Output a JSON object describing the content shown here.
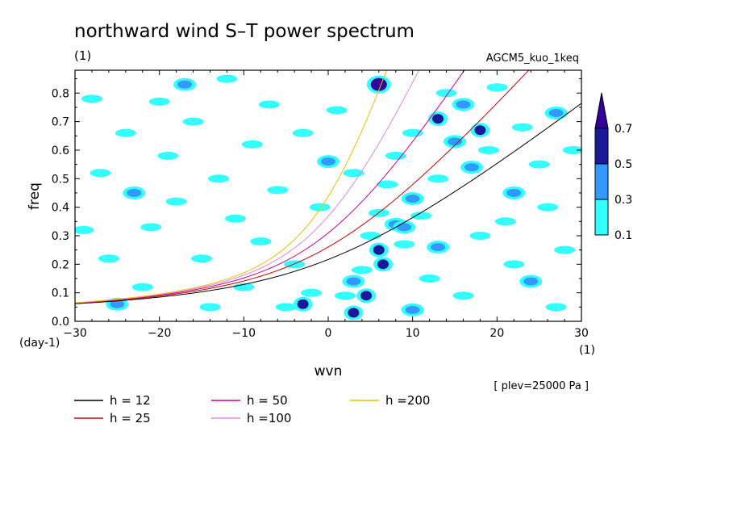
{
  "chart_data": {
    "type": "heatmap",
    "title": "northward wind S–T power spectrum",
    "subtitle_left": "(1)",
    "subtitle_right": "AGCM5_kuo_1keq",
    "xlabel": "wvn",
    "ylabel": "freq",
    "x_unit_label": "(1)",
    "y_unit_label": "(day-1)",
    "xlim": [
      -30,
      30
    ],
    "ylim": [
      0,
      0.88
    ],
    "x_ticks": [
      -30,
      -20,
      -10,
      0,
      10,
      20,
      30
    ],
    "y_ticks": [
      0.0,
      0.1,
      0.2,
      0.3,
      0.4,
      0.5,
      0.6,
      0.7,
      0.8
    ],
    "annotation": "[ plev=25000 Pa ]",
    "colorbar": {
      "levels": [
        0.1,
        0.3,
        0.5,
        0.7
      ],
      "level_labels": [
        "0.1",
        "0.3",
        "0.5",
        "0.7"
      ],
      "colors": [
        "#33ffff",
        "#3399ff",
        "#1a1a99",
        "#330099"
      ]
    },
    "series": [
      {
        "name": "h = 12",
        "equivalent_depth": 12,
        "color": "#000000"
      },
      {
        "name": "h = 25",
        "equivalent_depth": 25,
        "color": "#cc0000"
      },
      {
        "name": "h = 50",
        "equivalent_depth": 50,
        "color": "#cc0099"
      },
      {
        "name": "h =100",
        "equivalent_depth": 100,
        "color": "#dd88dd"
      },
      {
        "name": "h =200",
        "equivalent_depth": 200,
        "color": "#e6c200"
      }
    ],
    "contour_blobs": [
      {
        "wvn": 6,
        "freq": 0.83,
        "level": 0.7
      },
      {
        "wvn": 3,
        "freq": 0.03,
        "level": 0.5
      },
      {
        "wvn": 4.5,
        "freq": 0.09,
        "level": 0.5
      },
      {
        "wvn": 6,
        "freq": 0.25,
        "level": 0.5
      },
      {
        "wvn": 6.5,
        "freq": 0.2,
        "level": 0.5
      },
      {
        "wvn": -3,
        "freq": 0.06,
        "level": 0.5
      },
      {
        "wvn": 13,
        "freq": 0.71,
        "level": 0.5
      },
      {
        "wvn": 18,
        "freq": 0.67,
        "level": 0.5
      },
      {
        "wvn": 8,
        "freq": 0.34,
        "level": 0.3
      },
      {
        "wvn": 10,
        "freq": 0.43,
        "level": 0.3
      },
      {
        "wvn": 9,
        "freq": 0.33,
        "level": 0.3
      },
      {
        "wvn": 3,
        "freq": 0.14,
        "level": 0.3
      },
      {
        "wvn": 13,
        "freq": 0.26,
        "level": 0.3
      },
      {
        "wvn": 15,
        "freq": 0.63,
        "level": 0.3
      },
      {
        "wvn": 16,
        "freq": 0.76,
        "level": 0.3
      },
      {
        "wvn": 17,
        "freq": 0.54,
        "level": 0.3
      },
      {
        "wvn": 22,
        "freq": 0.45,
        "level": 0.3
      },
      {
        "wvn": 24,
        "freq": 0.14,
        "level": 0.3
      },
      {
        "wvn": 10,
        "freq": 0.04,
        "level": 0.3
      },
      {
        "wvn": -25,
        "freq": 0.06,
        "level": 0.3
      },
      {
        "wvn": -17,
        "freq": 0.83,
        "level": 0.3
      },
      {
        "wvn": 27,
        "freq": 0.73,
        "level": 0.3
      },
      {
        "wvn": 0,
        "freq": 0.56,
        "level": 0.3
      },
      {
        "wvn": -23,
        "freq": 0.45,
        "level": 0.3
      },
      {
        "wvn": -5,
        "freq": 0.05,
        "level": 0.1
      },
      {
        "wvn": -2,
        "freq": 0.1,
        "level": 0.1
      },
      {
        "wvn": 2,
        "freq": 0.09,
        "level": 0.1
      },
      {
        "wvn": 4,
        "freq": 0.18,
        "level": 0.1
      },
      {
        "wvn": 5,
        "freq": 0.3,
        "level": 0.1
      },
      {
        "wvn": 6,
        "freq": 0.38,
        "level": 0.1
      },
      {
        "wvn": 7,
        "freq": 0.48,
        "level": 0.1
      },
      {
        "wvn": 9,
        "freq": 0.27,
        "level": 0.1
      },
      {
        "wvn": 11,
        "freq": 0.37,
        "level": 0.1
      },
      {
        "wvn": 13,
        "freq": 0.5,
        "level": 0.1
      },
      {
        "wvn": 14,
        "freq": 0.8,
        "level": 0.1
      },
      {
        "wvn": 19,
        "freq": 0.6,
        "level": 0.1
      },
      {
        "wvn": 21,
        "freq": 0.35,
        "level": 0.1
      },
      {
        "wvn": 25,
        "freq": 0.55,
        "level": 0.1
      },
      {
        "wvn": 28,
        "freq": 0.25,
        "level": 0.1
      },
      {
        "wvn": -28,
        "freq": 0.78,
        "level": 0.1
      },
      {
        "wvn": -27,
        "freq": 0.52,
        "level": 0.1
      },
      {
        "wvn": -26,
        "freq": 0.22,
        "level": 0.1
      },
      {
        "wvn": -24,
        "freq": 0.66,
        "level": 0.1
      },
      {
        "wvn": -22,
        "freq": 0.12,
        "level": 0.1
      },
      {
        "wvn": -21,
        "freq": 0.33,
        "level": 0.1
      },
      {
        "wvn": -19,
        "freq": 0.58,
        "level": 0.1
      },
      {
        "wvn": -18,
        "freq": 0.42,
        "level": 0.1
      },
      {
        "wvn": -16,
        "freq": 0.7,
        "level": 0.1
      },
      {
        "wvn": -15,
        "freq": 0.22,
        "level": 0.1
      },
      {
        "wvn": -13,
        "freq": 0.5,
        "level": 0.1
      },
      {
        "wvn": -12,
        "freq": 0.85,
        "level": 0.1
      },
      {
        "wvn": -11,
        "freq": 0.36,
        "level": 0.1
      },
      {
        "wvn": -9,
        "freq": 0.62,
        "level": 0.1
      },
      {
        "wvn": -8,
        "freq": 0.28,
        "level": 0.1
      },
      {
        "wvn": -7,
        "freq": 0.76,
        "level": 0.1
      },
      {
        "wvn": -6,
        "freq": 0.46,
        "level": 0.1
      },
      {
        "wvn": -4,
        "freq": 0.2,
        "level": 0.1
      },
      {
        "wvn": -3,
        "freq": 0.66,
        "level": 0.1
      },
      {
        "wvn": -1,
        "freq": 0.4,
        "level": 0.1
      },
      {
        "wvn": 1,
        "freq": 0.74,
        "level": 0.1
      },
      {
        "wvn": 3,
        "freq": 0.52,
        "level": 0.1
      },
      {
        "wvn": 10,
        "freq": 0.66,
        "level": 0.1
      },
      {
        "wvn": 12,
        "freq": 0.15,
        "level": 0.1
      },
      {
        "wvn": 16,
        "freq": 0.09,
        "level": 0.1
      },
      {
        "wvn": 18,
        "freq": 0.3,
        "level": 0.1
      },
      {
        "wvn": 20,
        "freq": 0.82,
        "level": 0.1
      },
      {
        "wvn": 23,
        "freq": 0.68,
        "level": 0.1
      },
      {
        "wvn": 26,
        "freq": 0.4,
        "level": 0.1
      },
      {
        "wvn": 29,
        "freq": 0.6,
        "level": 0.1
      },
      {
        "wvn": 27,
        "freq": 0.05,
        "level": 0.1
      },
      {
        "wvn": -29,
        "freq": 0.32,
        "level": 0.1
      },
      {
        "wvn": -20,
        "freq": 0.77,
        "level": 0.1
      },
      {
        "wvn": -10,
        "freq": 0.12,
        "level": 0.1
      },
      {
        "wvn": -14,
        "freq": 0.05,
        "level": 0.1
      },
      {
        "wvn": 8,
        "freq": 0.58,
        "level": 0.1
      },
      {
        "wvn": 22,
        "freq": 0.2,
        "level": 0.1
      }
    ]
  }
}
